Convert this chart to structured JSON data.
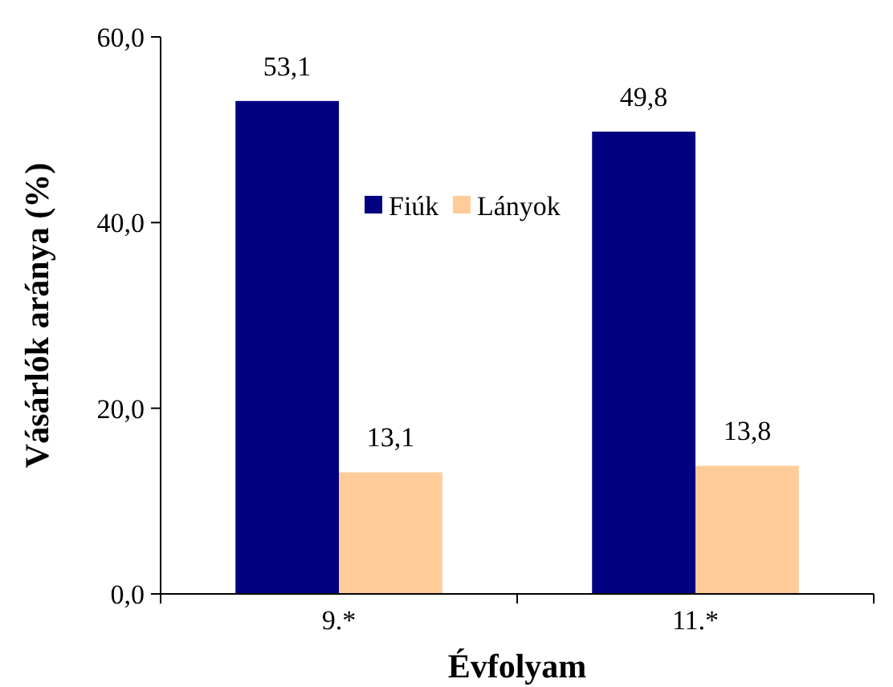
{
  "chart_data": {
    "type": "bar",
    "xlabel": "Évfolyam",
    "ylabel": "Vásárlók aránya (%)",
    "categories": [
      "9.*",
      "11.*"
    ],
    "series": [
      {
        "name": "Fiúk",
        "color": "#000080",
        "values": [
          53.1,
          49.8
        ],
        "value_labels": [
          "53,1",
          "49,8"
        ]
      },
      {
        "name": "Lányok",
        "color": "#ffcc99",
        "values": [
          13.1,
          13.8
        ],
        "value_labels": [
          "13,1",
          "13,8"
        ]
      }
    ],
    "ylim": [
      0,
      60
    ],
    "yticks": [
      {
        "value": 0,
        "label": "0,0"
      },
      {
        "value": 20,
        "label": "20,0"
      },
      {
        "value": 40,
        "label": "40,0"
      },
      {
        "value": 60,
        "label": "60,0"
      }
    ],
    "legend": "top",
    "grid": false
  }
}
